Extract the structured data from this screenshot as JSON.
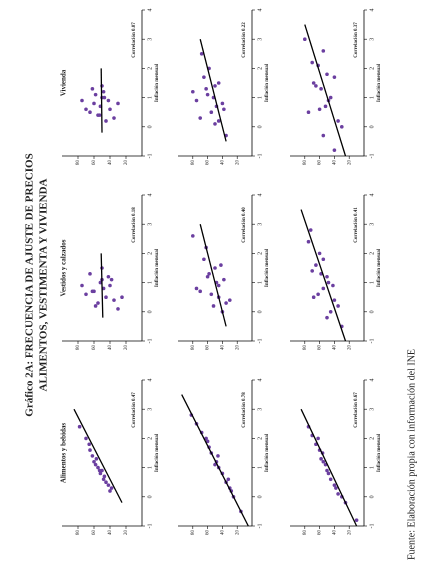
{
  "title": "Gráfico 2A: FRECUENCIA DE AJUSTE DE PRECIOS",
  "subtitle": "ALIMENTOS, VESTIMENTA Y VIVIENDA",
  "source": "Fuente: Elaboración propia con información del INE",
  "chart_data": [
    {
      "type": "scatter",
      "title": "Alimentos y bebidas",
      "annotation": "Correlación 0.47",
      "xlabel": "Inflación mensual",
      "color": "#6b3fa0",
      "xlim": [
        -1,
        4
      ],
      "xticks": [
        -1,
        0,
        1,
        2,
        3,
        4
      ],
      "ylim": [
        0,
        100
      ],
      "yticks": [
        20,
        40,
        60,
        80
      ],
      "x": [
        0.2,
        0.5,
        0.8,
        1.0,
        1.2,
        0.6,
        0.9,
        1.4,
        1.1,
        0.3,
        0.7,
        1.6,
        2.0,
        0.4,
        1.3,
        0.9,
        1.8,
        2.4
      ],
      "y": [
        40,
        45,
        52,
        55,
        60,
        48,
        50,
        62,
        58,
        38,
        47,
        65,
        70,
        42,
        57,
        53,
        66,
        78
      ],
      "fit_x": [
        -0.2,
        3
      ],
      "fit_y": [
        25,
        85
      ]
    },
    {
      "type": "scatter",
      "title": "Vestidos y calzados",
      "annotation": "Correlación 0.18",
      "xlabel": "Inflación mensual",
      "color": "#6b3fa0",
      "xlim": [
        -1,
        4
      ],
      "xticks": [
        -1,
        0,
        1,
        2,
        3,
        4
      ],
      "ylim": [
        0,
        100
      ],
      "yticks": [
        20,
        40,
        60,
        80
      ],
      "x": [
        0.1,
        0.3,
        0.5,
        0.7,
        0.9,
        1.1,
        1.3,
        0.4,
        0.6,
        0.8,
        1.0,
        1.2,
        0.2,
        1.5,
        0.9,
        0.5,
        0.7,
        1.1
      ],
      "y": [
        30,
        55,
        45,
        60,
        40,
        50,
        65,
        35,
        70,
        48,
        52,
        42,
        58,
        50,
        75,
        25,
        62,
        38
      ],
      "fit_x": [
        -0.2,
        2
      ],
      "fit_y": [
        49,
        51
      ]
    },
    {
      "type": "scatter",
      "title": "Vivienda",
      "annotation": "Correlación 0.07",
      "xlabel": "Inflación mensual",
      "color": "#6b3fa0",
      "xlim": [
        -1,
        4
      ],
      "xticks": [
        -1,
        0,
        1,
        2,
        3,
        4
      ],
      "ylim": [
        0,
        100
      ],
      "yticks": [
        20,
        40,
        60,
        80
      ],
      "x": [
        0.2,
        0.4,
        0.6,
        0.8,
        1.0,
        1.2,
        0.3,
        0.5,
        0.7,
        0.9,
        1.1,
        1.4,
        0.6,
        0.8,
        1.0,
        0.4,
        1.3,
        0.9
      ],
      "y": [
        45,
        55,
        40,
        60,
        50,
        48,
        35,
        65,
        52,
        42,
        58,
        50,
        70,
        30,
        47,
        53,
        62,
        75
      ],
      "fit_x": [
        -0.2,
        2
      ],
      "fit_y": [
        50,
        51
      ]
    },
    {
      "type": "scatter",
      "annotation": "Correlación 0.78",
      "xlabel": "Inflación mensual",
      "color": "#6b3fa0",
      "xlim": [
        -1,
        4
      ],
      "xticks": [
        -1,
        0,
        1,
        2,
        3,
        4
      ],
      "ylim": [
        0,
        100
      ],
      "yticks": [
        20,
        40,
        60,
        80
      ],
      "x": [
        -0.5,
        0,
        0.3,
        0.5,
        0.8,
        1.0,
        1.2,
        1.5,
        1.7,
        2.0,
        2.2,
        2.5,
        0.6,
        1.1,
        1.9,
        2.8,
        0.2,
        1.4
      ],
      "y": [
        15,
        25,
        30,
        35,
        40,
        45,
        48,
        55,
        58,
        62,
        68,
        75,
        32,
        50,
        60,
        82,
        28,
        46
      ],
      "fit_x": [
        -1,
        3.5
      ],
      "fit_y": [
        5,
        95
      ]
    },
    {
      "type": "scatter",
      "annotation": "Correlación 0.40",
      "xlabel": "Inflación mensual",
      "color": "#6b3fa0",
      "xlim": [
        -1,
        4
      ],
      "xticks": [
        -1,
        0,
        1,
        2,
        3,
        4
      ],
      "ylim": [
        0,
        100
      ],
      "yticks": [
        20,
        40,
        60,
        80
      ],
      "x": [
        0.0,
        0.3,
        0.6,
        0.9,
        1.2,
        1.5,
        1.8,
        0.4,
        0.7,
        1.0,
        1.3,
        1.6,
        0.2,
        2.2,
        0.8,
        1.1,
        0.5,
        2.6
      ],
      "y": [
        40,
        35,
        55,
        45,
        60,
        50,
        65,
        30,
        70,
        48,
        58,
        42,
        52,
        62,
        75,
        38,
        45,
        80
      ],
      "fit_x": [
        -0.5,
        3
      ],
      "fit_y": [
        35,
        70
      ]
    },
    {
      "type": "scatter",
      "annotation": "Correlación 0.22",
      "xlabel": "Inflación mensual",
      "color": "#6b3fa0",
      "xlim": [
        -1,
        4
      ],
      "xticks": [
        -1,
        0,
        1,
        2,
        3,
        4
      ],
      "ylim": [
        0,
        100
      ],
      "yticks": [
        20,
        40,
        60,
        80
      ],
      "x": [
        -0.3,
        0.2,
        0.5,
        0.8,
        1.1,
        1.4,
        1.7,
        2.0,
        0.3,
        0.7,
        1.0,
        1.3,
        0.6,
        0.9,
        2.5,
        0.1,
        1.5,
        1.2
      ],
      "y": [
        35,
        45,
        55,
        40,
        60,
        50,
        65,
        58,
        70,
        48,
        52,
        62,
        38,
        75,
        68,
        50,
        45,
        80
      ],
      "fit_x": [
        -0.5,
        3
      ],
      "fit_y": [
        35,
        70
      ]
    },
    {
      "type": "scatter",
      "annotation": "Correlación 0.67",
      "xlabel": "Inflación mensual",
      "color": "#6b3fa0",
      "xlim": [
        -1,
        4
      ],
      "xticks": [
        -1,
        0,
        1,
        2,
        3,
        4
      ],
      "ylim": [
        0,
        100
      ],
      "yticks": [
        20,
        40,
        60,
        80
      ],
      "x": [
        -0.8,
        -0.2,
        0.1,
        0.4,
        0.6,
        0.9,
        1.1,
        1.3,
        1.6,
        1.8,
        2.1,
        2.4,
        0.3,
        0.8,
        1.5,
        2.0,
        0.0,
        1.2
      ],
      "y": [
        10,
        25,
        35,
        40,
        45,
        50,
        52,
        58,
        60,
        65,
        70,
        75,
        38,
        48,
        56,
        62,
        30,
        55
      ],
      "fit_x": [
        -1,
        3
      ],
      "fit_y": [
        10,
        85
      ]
    },
    {
      "type": "scatter",
      "annotation": "Correlación 0.41",
      "xlabel": "Inflación mensual",
      "color": "#6b3fa0",
      "xlim": [
        -1,
        4
      ],
      "xticks": [
        -1,
        0,
        1,
        2,
        3,
        4
      ],
      "ylim": [
        0,
        100
      ],
      "yticks": [
        20,
        40,
        60,
        80
      ],
      "x": [
        -0.5,
        0.0,
        0.4,
        0.8,
        1.2,
        1.6,
        2.0,
        0.2,
        0.6,
        1.0,
        1.4,
        1.8,
        2.4,
        0.9,
        1.3,
        -0.2,
        0.5,
        2.8
      ],
      "y": [
        30,
        45,
        40,
        55,
        50,
        65,
        60,
        35,
        62,
        48,
        70,
        55,
        75,
        42,
        58,
        50,
        68,
        72
      ],
      "fit_x": [
        -1,
        3.5
      ],
      "fit_y": [
        25,
        85
      ]
    },
    {
      "type": "scatter",
      "annotation": "Correlación 0.37",
      "xlabel": "Inflación mensual",
      "color": "#6b3fa0",
      "xlim": [
        -1,
        4
      ],
      "xticks": [
        -1,
        0,
        1,
        2,
        3,
        4
      ],
      "ylim": [
        0,
        100
      ],
      "yticks": [
        20,
        40,
        60,
        80
      ],
      "x": [
        -0.8,
        -0.3,
        0.2,
        0.6,
        1.0,
        1.4,
        1.8,
        2.2,
        2.6,
        0.0,
        0.5,
        0.9,
        1.3,
        1.7,
        2.1,
        3.0,
        0.7,
        1.5
      ],
      "y": [
        40,
        55,
        35,
        60,
        45,
        65,
        50,
        70,
        55,
        30,
        75,
        48,
        58,
        40,
        62,
        80,
        52,
        68
      ],
      "fit_x": [
        -1,
        3.5
      ],
      "fit_y": [
        25,
        80
      ]
    }
  ]
}
